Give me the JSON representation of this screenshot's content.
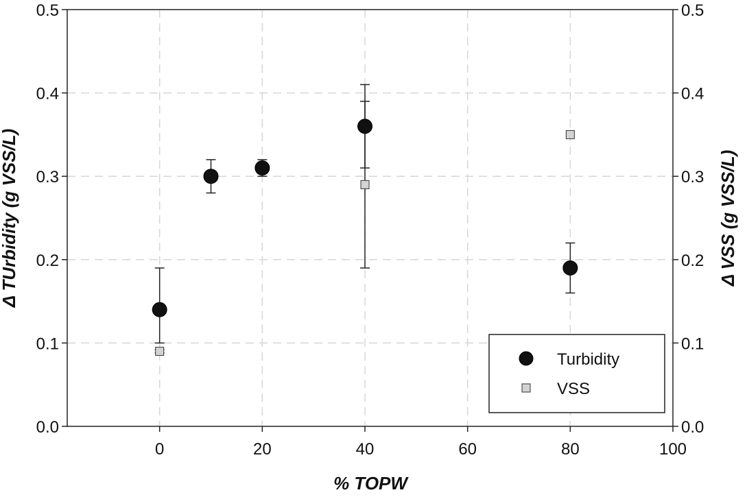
{
  "chart_data": {
    "type": "scatter",
    "xlabel": "% TOPW",
    "ylabel_left": "Δ TUrbidity (g VSS/L)",
    "ylabel_right": "Δ VSS (g VSS/L)",
    "xlim": [
      -18,
      100
    ],
    "ylim": [
      0.0,
      0.5
    ],
    "x_ticks": [
      "0",
      "20",
      "40",
      "60",
      "80",
      "100"
    ],
    "y_ticks": [
      "0.0",
      "0.1",
      "0.2",
      "0.3",
      "0.4",
      "0.5"
    ],
    "grid": true,
    "legend_position": "bottom-right",
    "series": [
      {
        "name": "Turbidity",
        "marker": "circle",
        "color": "#111111",
        "points": [
          {
            "x": 0,
            "y": 0.14,
            "err_low": 0.1,
            "err_high": 0.19
          },
          {
            "x": 10,
            "y": 0.3,
            "err_low": 0.28,
            "err_high": 0.32
          },
          {
            "x": 20,
            "y": 0.31,
            "err_low": 0.3,
            "err_high": 0.32
          },
          {
            "x": 40,
            "y": 0.36,
            "err_low": 0.31,
            "err_high": 0.41
          },
          {
            "x": 80,
            "y": 0.19,
            "err_low": 0.16,
            "err_high": 0.22
          }
        ]
      },
      {
        "name": "VSS",
        "marker": "square",
        "color": "#d3d3d3",
        "points": [
          {
            "x": 0,
            "y": 0.09,
            "err_low": 0.088,
            "err_high": 0.092
          },
          {
            "x": 40,
            "y": 0.29,
            "err_low": 0.19,
            "err_high": 0.39
          },
          {
            "x": 80,
            "y": 0.35,
            "err_low": 0.35,
            "err_high": 0.35
          }
        ]
      }
    ]
  }
}
